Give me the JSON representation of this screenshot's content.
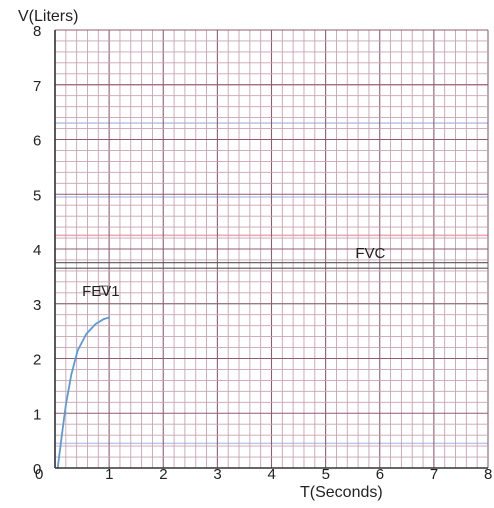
{
  "chart_data": {
    "type": "line",
    "ylabel": "V(Liters)",
    "xlabel": "T(Seconds)",
    "xlim": [
      0,
      8
    ],
    "ylim": [
      0,
      8
    ],
    "x_ticks": [
      "0",
      "1",
      "2",
      "3",
      "4",
      "5",
      "6",
      "7",
      "8"
    ],
    "y_ticks": [
      "0",
      "1",
      "2",
      "3",
      "4",
      "5",
      "6",
      "7",
      "8"
    ],
    "grid": true,
    "grid_minor_per_unit": 5,
    "series": [
      {
        "color": "#5b9bd5",
        "points": [
          [
            0.05,
            0
          ],
          [
            0.12,
            0.55
          ],
          [
            0.2,
            1.15
          ],
          [
            0.3,
            1.7
          ],
          [
            0.42,
            2.15
          ],
          [
            0.58,
            2.45
          ],
          [
            0.75,
            2.63
          ],
          [
            0.9,
            2.72
          ],
          [
            1.0,
            2.75
          ]
        ]
      }
    ],
    "reference_lines": [
      {
        "y": 3.75,
        "color": "#555555"
      },
      {
        "y": 3.65,
        "color": "#555555"
      }
    ],
    "annotations": [
      {
        "text": "FVC",
        "x": 5.55,
        "y": 3.84
      },
      {
        "text": "FEV1",
        "x": 0.5,
        "y": 3.14
      }
    ],
    "marker": {
      "x": 0.9,
      "y": 3.25
    },
    "colors": {
      "minor_grid": "#c9a2b2",
      "major_grid": "#8f5c72",
      "band_red": "#e08a9a",
      "band_blue": "#9fb1e6",
      "band_green": "#9fcfa6",
      "axis": "#333333"
    }
  }
}
